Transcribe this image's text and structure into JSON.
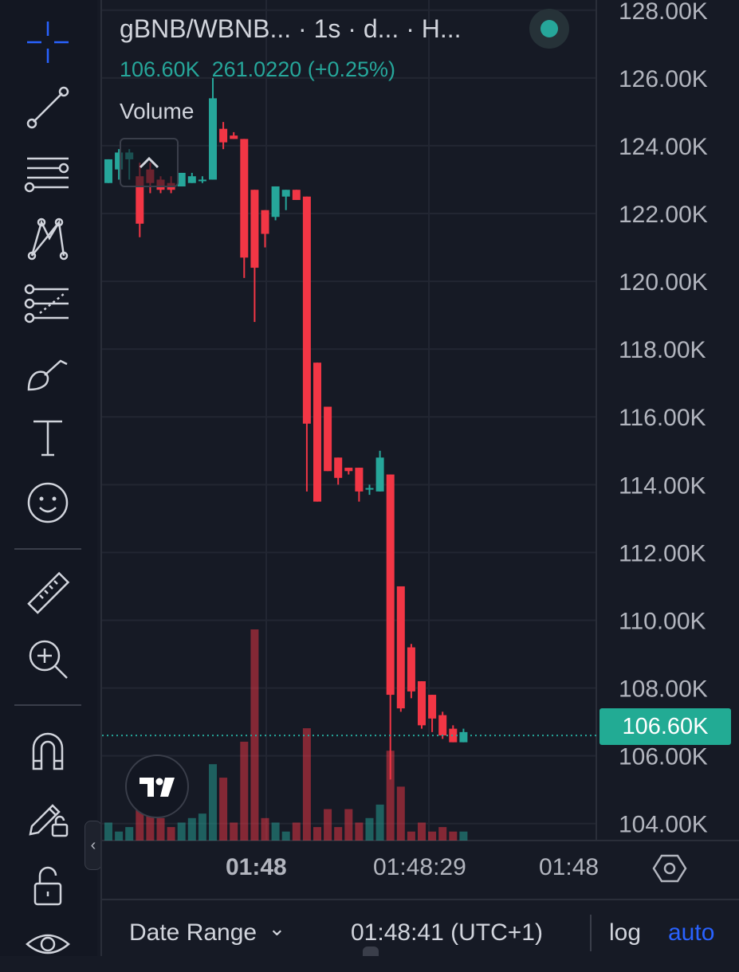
{
  "legend": {
    "title": "gBNB/WBNB...  · 1s · d...  · H...",
    "last_price": "106.60K",
    "change": "261.0220 (+0.25%)",
    "volume_label": "Volume"
  },
  "price_axis": {
    "labels": [
      "128.00K",
      "126.00K",
      "124.00K",
      "122.00K",
      "120.00K",
      "118.00K",
      "116.00K",
      "114.00K",
      "112.00K",
      "110.00K",
      "108.00K",
      "106.00K",
      "104.00K"
    ],
    "current_price_label": "106.60K"
  },
  "time_axis": {
    "labels": [
      "01:48",
      "01:48:29",
      "01:48"
    ]
  },
  "bottom_bar": {
    "date_range": "Date Range",
    "chevron": "⌄",
    "clock": "01:48:41 (UTC+1)",
    "log": "log",
    "auto": "auto"
  },
  "colors": {
    "up": "#26a69a",
    "down": "#f23645",
    "background": "#161a25",
    "grid": "#222632",
    "accent": "#2962ff",
    "badge": "#22ab94"
  },
  "toolbar": {
    "tools": [
      "crosshair-icon",
      "trend-line-icon",
      "fib-lines-icon",
      "pattern-icon",
      "forecast-icon",
      "brush-icon",
      "text-icon",
      "emoji-icon",
      "ruler-icon",
      "zoom-in-icon",
      "magnet-icon",
      "lock-drawing-icon",
      "lock-icon",
      "eye-icon"
    ]
  },
  "chart_data": {
    "type": "candlestick",
    "ylim": [
      103500,
      128300
    ],
    "current_price": 106600,
    "candles": [
      {
        "o": 122900,
        "h": 123600,
        "l": 122900,
        "c": 123600
      },
      {
        "o": 123300,
        "h": 123900,
        "l": 123000,
        "c": 123800
      },
      {
        "o": 123600,
        "h": 123900,
        "l": 123000,
        "c": 123800
      },
      {
        "o": 123100,
        "h": 123500,
        "l": 121300,
        "c": 121700
      },
      {
        "o": 123300,
        "h": 123500,
        "l": 122600,
        "c": 122900
      },
      {
        "o": 123000,
        "h": 123100,
        "l": 122600,
        "c": 122700
      },
      {
        "o": 122900,
        "h": 123100,
        "l": 122600,
        "c": 122700
      },
      {
        "o": 122800,
        "h": 123200,
        "l": 122800,
        "c": 123200
      },
      {
        "o": 122900,
        "h": 123200,
        "l": 122900,
        "c": 123100
      },
      {
        "o": 123000,
        "h": 123100,
        "l": 122900,
        "c": 123000
      },
      {
        "o": 123000,
        "h": 126000,
        "l": 123000,
        "c": 125400
      },
      {
        "o": 124500,
        "h": 124700,
        "l": 123900,
        "c": 124100
      },
      {
        "o": 124300,
        "h": 124400,
        "l": 124200,
        "c": 124200
      },
      {
        "o": 124200,
        "h": 124200,
        "l": 120100,
        "c": 120700
      },
      {
        "o": 122700,
        "h": 122700,
        "l": 118800,
        "c": 120400
      },
      {
        "o": 122100,
        "h": 122100,
        "l": 121000,
        "c": 121400
      },
      {
        "o": 121900,
        "h": 122800,
        "l": 121800,
        "c": 122800
      },
      {
        "o": 122500,
        "h": 122700,
        "l": 122100,
        "c": 122700
      },
      {
        "o": 122700,
        "h": 122700,
        "l": 122400,
        "c": 122400
      },
      {
        "o": 122500,
        "h": 122500,
        "l": 113800,
        "c": 115800
      },
      {
        "o": 117600,
        "h": 117600,
        "l": 113500,
        "c": 113500
      },
      {
        "o": 116300,
        "h": 116300,
        "l": 114400,
        "c": 114400
      },
      {
        "o": 114800,
        "h": 114800,
        "l": 114000,
        "c": 114200
      },
      {
        "o": 114500,
        "h": 114500,
        "l": 114300,
        "c": 114400
      },
      {
        "o": 114500,
        "h": 114500,
        "l": 113500,
        "c": 113800
      },
      {
        "o": 113900,
        "h": 114000,
        "l": 113700,
        "c": 113900
      },
      {
        "o": 113800,
        "h": 115000,
        "l": 113800,
        "c": 114800
      },
      {
        "o": 114300,
        "h": 114300,
        "l": 105300,
        "c": 107800
      },
      {
        "o": 111000,
        "h": 111000,
        "l": 107300,
        "c": 107400
      },
      {
        "o": 109200,
        "h": 109300,
        "l": 107700,
        "c": 107900
      },
      {
        "o": 108200,
        "h": 108200,
        "l": 106800,
        "c": 106900
      },
      {
        "o": 107800,
        "h": 107800,
        "l": 106700,
        "c": 107100
      },
      {
        "o": 107200,
        "h": 107300,
        "l": 106500,
        "c": 106600
      },
      {
        "o": 106800,
        "h": 106900,
        "l": 106400,
        "c": 106400
      },
      {
        "o": 106400,
        "h": 106800,
        "l": 106400,
        "c": 106700
      }
    ],
    "volumes": [
      4,
      2,
      3,
      8,
      6,
      5,
      3,
      4,
      5,
      6,
      17,
      14,
      4,
      22,
      47,
      5,
      4,
      2,
      4,
      25,
      3,
      7,
      3,
      7,
      4,
      5,
      8,
      20,
      12,
      2,
      4,
      2,
      3,
      2,
      2
    ]
  }
}
